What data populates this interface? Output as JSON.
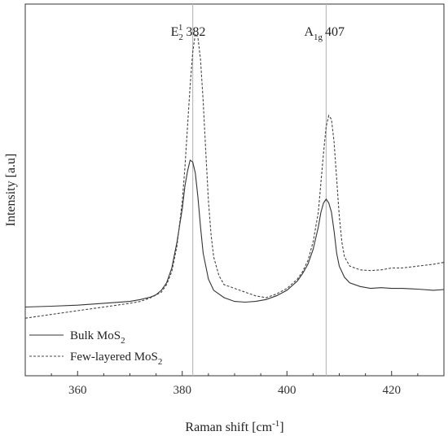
{
  "chart_data": {
    "type": "line",
    "title": "",
    "xlabel": "Raman shift [cm",
    "xlabel_sup": "-1",
    "xlabel_end": "]",
    "ylabel": "Intensity [a.u]",
    "xlim": [
      350,
      430
    ],
    "ylim": [
      0,
      1
    ],
    "x_ticks": [
      360,
      380,
      400,
      420
    ],
    "x_tick_labels": [
      "360",
      "380",
      "400",
      "420"
    ],
    "y_ticks_labeled": false,
    "grid": false,
    "legend_position": "bottom-left",
    "reference_lines": [
      382,
      407.5
    ],
    "peak_labels": [
      {
        "base": "E",
        "sub": "2",
        "sup": "1",
        "value": "382",
        "x": 382
      },
      {
        "base": "A",
        "sub": "1g",
        "sup": "",
        "value": "407",
        "x": 407.5
      }
    ],
    "series": [
      {
        "name": "Bulk MoS",
        "name_sub": "2",
        "style": "solid",
        "color": "#333333",
        "points": [
          [
            350,
            0.185
          ],
          [
            355,
            0.187
          ],
          [
            360,
            0.19
          ],
          [
            365,
            0.195
          ],
          [
            370,
            0.2
          ],
          [
            372,
            0.205
          ],
          [
            374,
            0.212
          ],
          [
            375,
            0.218
          ],
          [
            376,
            0.23
          ],
          [
            377,
            0.25
          ],
          [
            378,
            0.29
          ],
          [
            379,
            0.36
          ],
          [
            380,
            0.45
          ],
          [
            380.5,
            0.51
          ],
          [
            381,
            0.55
          ],
          [
            381.5,
            0.58
          ],
          [
            382,
            0.575
          ],
          [
            382.5,
            0.545
          ],
          [
            383,
            0.48
          ],
          [
            383.5,
            0.4
          ],
          [
            384,
            0.33
          ],
          [
            385,
            0.26
          ],
          [
            386,
            0.23
          ],
          [
            388,
            0.21
          ],
          [
            390,
            0.2
          ],
          [
            392,
            0.198
          ],
          [
            394,
            0.2
          ],
          [
            396,
            0.205
          ],
          [
            398,
            0.215
          ],
          [
            400,
            0.23
          ],
          [
            402,
            0.255
          ],
          [
            403,
            0.275
          ],
          [
            404,
            0.3
          ],
          [
            405,
            0.34
          ],
          [
            406,
            0.4
          ],
          [
            406.5,
            0.44
          ],
          [
            407,
            0.465
          ],
          [
            407.5,
            0.475
          ],
          [
            408,
            0.465
          ],
          [
            408.5,
            0.44
          ],
          [
            409,
            0.39
          ],
          [
            409.5,
            0.33
          ],
          [
            410,
            0.295
          ],
          [
            411,
            0.265
          ],
          [
            412,
            0.25
          ],
          [
            414,
            0.24
          ],
          [
            416,
            0.235
          ],
          [
            418,
            0.237
          ],
          [
            420,
            0.235
          ],
          [
            422,
            0.235
          ],
          [
            425,
            0.233
          ],
          [
            428,
            0.23
          ],
          [
            430,
            0.232
          ]
        ]
      },
      {
        "name": "Few-layered MoS",
        "name_sub": "2",
        "style": "dashed",
        "color": "#444444",
        "points": [
          [
            350,
            0.155
          ],
          [
            355,
            0.165
          ],
          [
            360,
            0.175
          ],
          [
            365,
            0.185
          ],
          [
            370,
            0.195
          ],
          [
            372,
            0.2
          ],
          [
            374,
            0.21
          ],
          [
            376,
            0.225
          ],
          [
            377,
            0.245
          ],
          [
            378,
            0.28
          ],
          [
            379,
            0.35
          ],
          [
            380,
            0.47
          ],
          [
            380.5,
            0.56
          ],
          [
            381,
            0.67
          ],
          [
            381.5,
            0.78
          ],
          [
            382,
            0.87
          ],
          [
            382.5,
            0.92
          ],
          [
            383,
            0.91
          ],
          [
            383.5,
            0.85
          ],
          [
            384,
            0.74
          ],
          [
            384.5,
            0.6
          ],
          [
            385,
            0.47
          ],
          [
            385.5,
            0.38
          ],
          [
            386,
            0.32
          ],
          [
            387,
            0.27
          ],
          [
            388,
            0.245
          ],
          [
            390,
            0.235
          ],
          [
            392,
            0.225
          ],
          [
            394,
            0.215
          ],
          [
            396,
            0.21
          ],
          [
            398,
            0.22
          ],
          [
            400,
            0.235
          ],
          [
            402,
            0.26
          ],
          [
            403,
            0.28
          ],
          [
            404,
            0.31
          ],
          [
            405,
            0.36
          ],
          [
            406,
            0.44
          ],
          [
            406.5,
            0.52
          ],
          [
            407,
            0.6
          ],
          [
            407.5,
            0.67
          ],
          [
            408,
            0.7
          ],
          [
            408.5,
            0.69
          ],
          [
            409,
            0.63
          ],
          [
            409.5,
            0.53
          ],
          [
            410,
            0.43
          ],
          [
            410.5,
            0.36
          ],
          [
            411,
            0.32
          ],
          [
            412,
            0.295
          ],
          [
            414,
            0.285
          ],
          [
            416,
            0.283
          ],
          [
            418,
            0.285
          ],
          [
            420,
            0.29
          ],
          [
            422,
            0.29
          ],
          [
            425,
            0.295
          ],
          [
            428,
            0.3
          ],
          [
            430,
            0.305
          ]
        ]
      }
    ]
  }
}
